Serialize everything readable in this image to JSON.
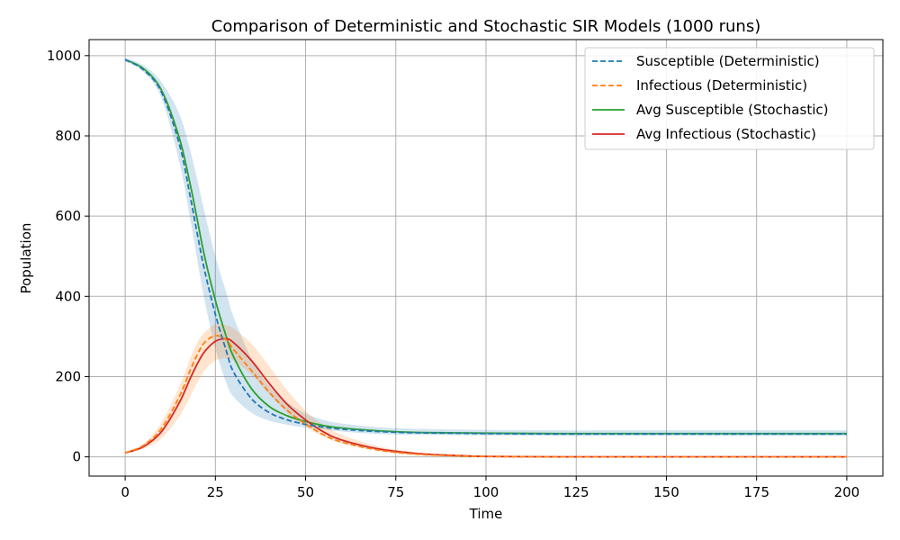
{
  "chart_data": {
    "type": "line",
    "title": "Comparison of Deterministic and Stochastic SIR Models (1000 runs)",
    "xlabel": "Time",
    "ylabel": "Population",
    "xlim": [
      -10,
      210
    ],
    "ylim": [
      -48,
      1040
    ],
    "xticks": [
      0,
      25,
      50,
      75,
      100,
      125,
      150,
      175,
      200
    ],
    "yticks": [
      0,
      200,
      400,
      600,
      800,
      1000
    ],
    "grid": true,
    "legend_position": "top-right",
    "x": [
      0,
      5,
      10,
      15,
      18,
      20,
      22,
      25,
      28,
      30,
      35,
      40,
      45,
      50,
      55,
      60,
      70,
      80,
      90,
      100,
      120,
      150,
      200
    ],
    "series": [
      {
        "name": "Susceptible (Deterministic)",
        "color": "#1f77b4",
        "style": "dashed",
        "values": [
          990,
          965,
          910,
          780,
          650,
          555,
          465,
          355,
          265,
          212,
          145,
          110,
          92,
          81,
          74,
          69,
          63,
          60,
          59,
          58,
          57,
          57,
          57
        ]
      },
      {
        "name": "Infectious (Deterministic)",
        "color": "#ff7f0e",
        "style": "dashed",
        "values": [
          10,
          28,
          70,
          150,
          215,
          255,
          285,
          302,
          292,
          268,
          215,
          160,
          115,
          82,
          55,
          37,
          17,
          7,
          3,
          1,
          0,
          0,
          0
        ]
      },
      {
        "name": "Avg Susceptible (Stochastic)",
        "color": "#2ca02c",
        "style": "solid",
        "values": [
          990,
          968,
          915,
          795,
          680,
          590,
          500,
          390,
          300,
          250,
          170,
          125,
          102,
          88,
          78,
          72,
          65,
          61,
          60,
          59,
          58,
          58,
          58
        ]
      },
      {
        "name": "Avg Infectious (Stochastic)",
        "color": "#d62728",
        "style": "solid",
        "values": [
          10,
          25,
          62,
          135,
          195,
          232,
          262,
          288,
          294,
          285,
          240,
          182,
          130,
          92,
          62,
          42,
          20,
          9,
          4,
          1,
          0,
          0,
          0
        ]
      }
    ],
    "bands": [
      {
        "color": "#1f77b4",
        "lower": [
          985,
          960,
          895,
          735,
          595,
          490,
          390,
          270,
          185,
          150,
          110,
          90,
          80,
          73,
          68,
          63,
          57,
          55,
          54,
          53,
          52,
          52,
          52
        ],
        "upper": [
          995,
          976,
          935,
          855,
          765,
          690,
          610,
          500,
          410,
          350,
          245,
          175,
          135,
          108,
          92,
          83,
          74,
          70,
          68,
          67,
          66,
          66,
          66
        ]
      },
      {
        "color": "#ff7f0e",
        "lower": [
          8,
          20,
          45,
          100,
          150,
          185,
          215,
          240,
          245,
          240,
          205,
          155,
          110,
          75,
          50,
          33,
          15,
          6,
          2,
          0,
          0,
          0,
          0
        ],
        "upper": [
          12,
          32,
          85,
          175,
          245,
          285,
          310,
          330,
          328,
          320,
          282,
          225,
          165,
          115,
          80,
          55,
          27,
          12,
          5,
          2,
          1,
          0,
          0
        ]
      }
    ]
  }
}
